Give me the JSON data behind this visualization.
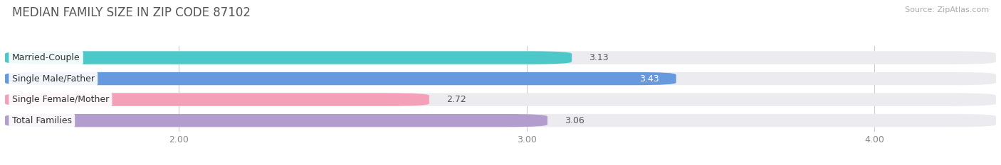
{
  "title": "MEDIAN FAMILY SIZE IN ZIP CODE 87102",
  "source": "Source: ZipAtlas.com",
  "categories": [
    "Married-Couple",
    "Single Male/Father",
    "Single Female/Mother",
    "Total Families"
  ],
  "values": [
    3.13,
    3.43,
    2.72,
    3.06
  ],
  "bar_colors": [
    "#4dc8c8",
    "#6699dd",
    "#f4a0b8",
    "#b39dcc"
  ],
  "value_colors": [
    "#555555",
    "#ffffff",
    "#555555",
    "#555555"
  ],
  "xlim_min": 1.5,
  "xlim_max": 4.35,
  "xticks": [
    2.0,
    3.0,
    4.0
  ],
  "xtick_labels": [
    "2.00",
    "3.00",
    "4.00"
  ],
  "background_color": "#ffffff",
  "bar_background_color": "#ebebf0",
  "bar_height": 0.62,
  "bar_gap": 0.18,
  "title_fontsize": 12,
  "source_fontsize": 8,
  "label_fontsize": 9,
  "value_fontsize": 9,
  "tick_fontsize": 9
}
